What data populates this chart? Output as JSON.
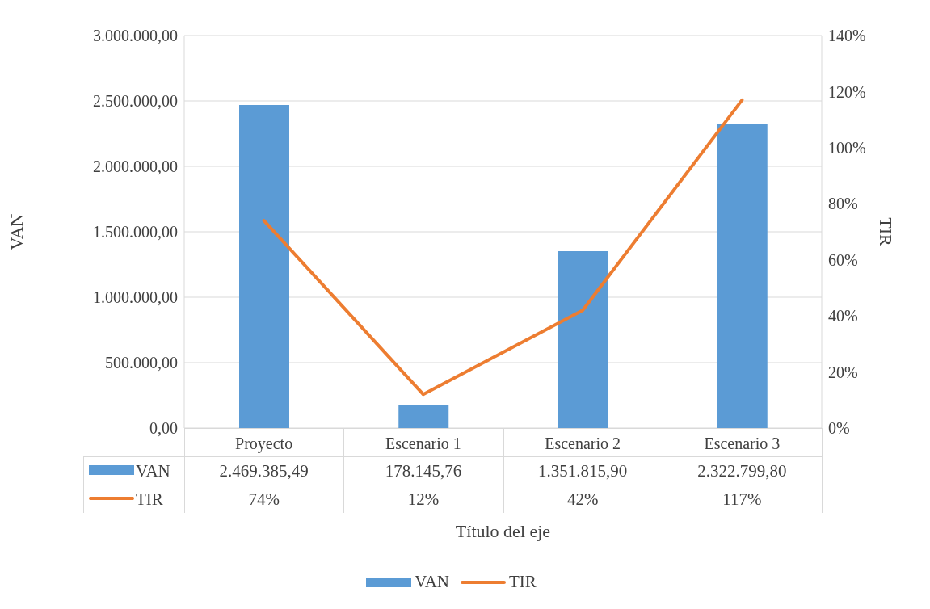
{
  "chart_data": {
    "type": "bar",
    "xlabel": "Título del eje",
    "ylabel": "VAN",
    "y2label": "TIR",
    "categories": [
      "Proyecto",
      "Escenario 1",
      "Escenario 2",
      "Escenario 3"
    ],
    "series": [
      {
        "name": "VAN",
        "color": "#5b9bd5",
        "values": [
          2469385.49,
          178145.76,
          1351815.9,
          2322799.8
        ],
        "value_labels": [
          "2.469.385,49",
          "178.145,76",
          "1.351.815,90",
          "2.322.799,80"
        ]
      },
      {
        "name": "TIR",
        "type": "line",
        "axis": "y2",
        "color": "#ed7d31",
        "values": [
          74,
          12,
          42,
          117
        ],
        "value_labels": [
          "74%",
          "12%",
          "42%",
          "117%"
        ]
      }
    ],
    "ylim": [
      0,
      3000000
    ],
    "yticks": [
      {
        "value": 0,
        "label": "0,00"
      },
      {
        "value": 500000,
        "label": "500.000,00"
      },
      {
        "value": 1000000,
        "label": "1.000.000,00"
      },
      {
        "value": 1500000,
        "label": "1.500.000,00"
      },
      {
        "value": 2000000,
        "label": "2.000.000,00"
      },
      {
        "value": 2500000,
        "label": "2.500.000,00"
      },
      {
        "value": 3000000,
        "label": "3.000.000,00"
      }
    ],
    "y2lim": [
      0,
      140
    ],
    "y2ticks": [
      {
        "value": 0,
        "label": "0%"
      },
      {
        "value": 20,
        "label": "20%"
      },
      {
        "value": 40,
        "label": "40%"
      },
      {
        "value": 60,
        "label": "60%"
      },
      {
        "value": 80,
        "label": "80%"
      },
      {
        "value": 100,
        "label": "100%"
      },
      {
        "value": 120,
        "label": "120%"
      },
      {
        "value": 140,
        "label": "140%"
      }
    ],
    "grid": "y",
    "legend": "bottom",
    "marker": "none",
    "line_style": "solid"
  }
}
